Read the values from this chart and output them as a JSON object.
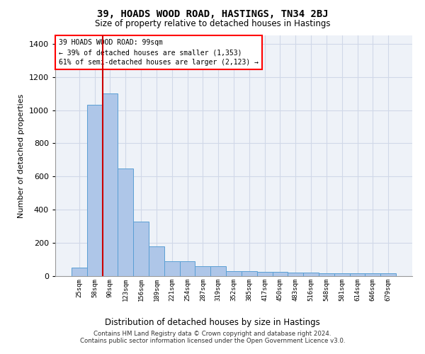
{
  "title_line1": "39, HOADS WOOD ROAD, HASTINGS, TN34 2BJ",
  "title_line2": "Size of property relative to detached houses in Hastings",
  "xlabel": "Distribution of detached houses by size in Hastings",
  "ylabel": "Number of detached properties",
  "footer_line1": "Contains HM Land Registry data © Crown copyright and database right 2024.",
  "footer_line2": "Contains public sector information licensed under the Open Government Licence v3.0.",
  "annotation_line1": "39 HOADS WOOD ROAD: 99sqm",
  "annotation_line2": "← 39% of detached houses are smaller (1,353)",
  "annotation_line3": "61% of semi-detached houses are larger (2,123) →",
  "bar_labels": [
    "25sqm",
    "58sqm",
    "90sqm",
    "123sqm",
    "156sqm",
    "189sqm",
    "221sqm",
    "254sqm",
    "287sqm",
    "319sqm",
    "352sqm",
    "385sqm",
    "417sqm",
    "450sqm",
    "483sqm",
    "516sqm",
    "548sqm",
    "581sqm",
    "614sqm",
    "646sqm",
    "679sqm"
  ],
  "bar_values": [
    50,
    1030,
    1100,
    650,
    330,
    180,
    90,
    90,
    60,
    60,
    30,
    30,
    25,
    25,
    20,
    20,
    15,
    15,
    15,
    15,
    15
  ],
  "bar_color": "#aec6e8",
  "bar_edgecolor": "#5a9fd4",
  "vline_color": "#cc0000",
  "ylim": [
    0,
    1450
  ],
  "yticks": [
    0,
    200,
    400,
    600,
    800,
    1000,
    1200,
    1400
  ],
  "grid_color": "#d0d8e8",
  "background_color": "#eef2f8"
}
